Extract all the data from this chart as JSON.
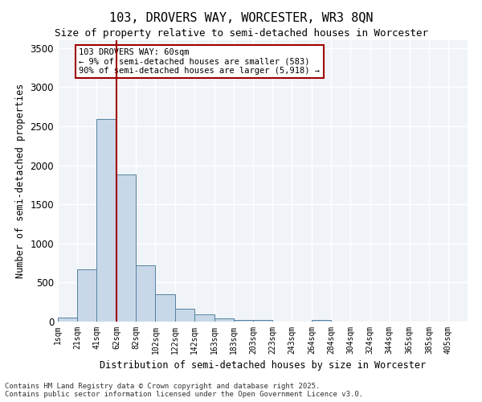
{
  "title_line1": "103, DROVERS WAY, WORCESTER, WR3 8QN",
  "title_line2": "Size of property relative to semi-detached houses in Worcester",
  "xlabel": "Distribution of semi-detached houses by size in Worcester",
  "ylabel": "Number of semi-detached properties",
  "bar_color": "#c8d8e8",
  "bar_edge_color": "#5580a0",
  "vline_x": 62,
  "vline_color": "#a00000",
  "annotation_text": "103 DROVERS WAY: 60sqm\n← 9% of semi-detached houses are smaller (583)\n90% of semi-detached houses are larger (5,918) →",
  "annotation_box_color": "#a00000",
  "categories": [
    "1sqm",
    "21sqm",
    "41sqm",
    "62sqm",
    "82sqm",
    "102sqm",
    "122sqm",
    "142sqm",
    "163sqm",
    "183sqm",
    "203sqm",
    "223sqm",
    "243sqm",
    "264sqm",
    "284sqm",
    "304sqm",
    "324sqm",
    "344sqm",
    "365sqm",
    "385sqm",
    "405sqm"
  ],
  "bin_edges": [
    1,
    21,
    41,
    62,
    82,
    102,
    122,
    142,
    163,
    183,
    203,
    223,
    243,
    264,
    284,
    304,
    324,
    344,
    365,
    385,
    405
  ],
  "bar_heights": [
    55,
    670,
    2590,
    1880,
    725,
    350,
    160,
    90,
    40,
    25,
    22,
    0,
    0,
    20,
    0,
    0,
    0,
    0,
    0,
    0,
    0
  ],
  "ylim": [
    0,
    3600
  ],
  "yticks": [
    0,
    500,
    1000,
    1500,
    2000,
    2500,
    3000,
    3500
  ],
  "footer_line1": "Contains HM Land Registry data © Crown copyright and database right 2025.",
  "footer_line2": "Contains public sector information licensed under the Open Government Licence v3.0.",
  "background_color": "#f0f4f8",
  "grid_color": "#ffffff"
}
